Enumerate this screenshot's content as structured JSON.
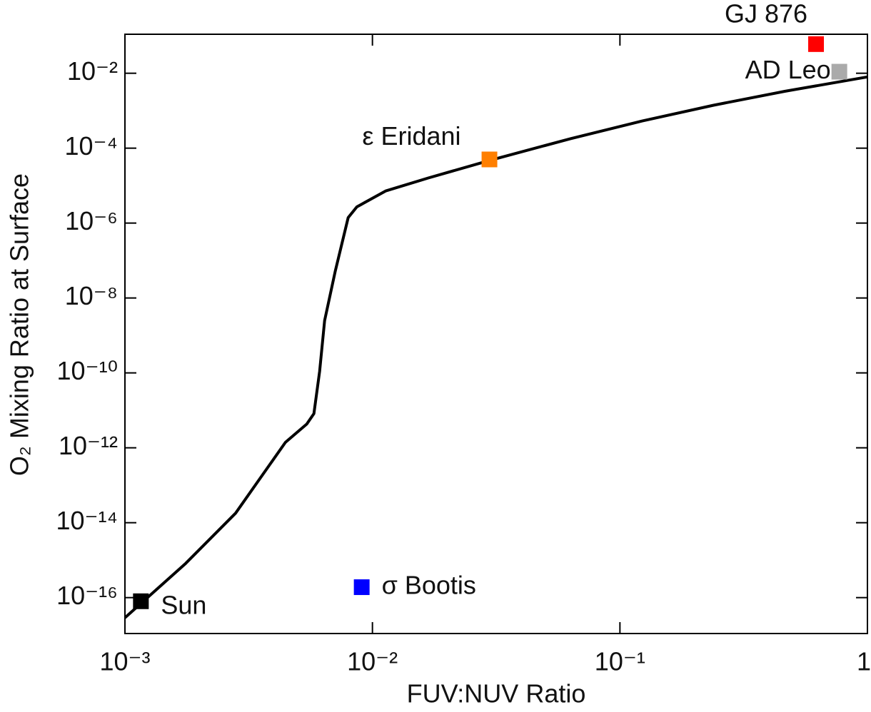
{
  "chart_data": {
    "type": "scatter",
    "x_label": "FUV:NUV Ratio",
    "y_label": "O₂ Mixing Ratio at Surface",
    "xscale": "log",
    "yscale": "log",
    "grid": false,
    "xlim": [
      0.001,
      1
    ],
    "ylim": [
      1.1e-17,
      0.11
    ],
    "xticks": [
      {
        "value": 0.001,
        "label": "10⁻³"
      },
      {
        "value": 0.01,
        "label": "10⁻²"
      },
      {
        "value": 0.1,
        "label": "10⁻¹"
      },
      1
    ],
    "yticks": [
      {
        "value": 1e-16,
        "label": "10⁻¹⁶"
      },
      {
        "value": 1e-14,
        "label": "10⁻¹⁴"
      },
      {
        "value": 1e-12,
        "label": "10⁻¹²"
      },
      {
        "value": 1e-10,
        "label": "10⁻¹⁰"
      },
      {
        "value": 1e-08,
        "label": "10⁻⁸"
      },
      {
        "value": 1e-06,
        "label": "10⁻⁶"
      },
      {
        "value": 0.0001,
        "label": "10⁻⁴"
      },
      {
        "value": 0.01,
        "label": "10⁻²"
      }
    ],
    "curve": {
      "color": "#000000",
      "x": [
        0.001,
        0.00176,
        0.0028,
        0.00445,
        0.00543,
        0.0058,
        0.00612,
        0.00641,
        0.00708,
        0.00798,
        0.00865,
        0.0113,
        0.0168,
        0.0297,
        0.0633,
        0.123,
        0.239,
        0.463,
        1
      ],
      "values": [
        2.9e-17,
        8.2e-16,
        1.8e-14,
        1.4e-12,
        4.3e-12,
        8.2e-12,
        1.1e-10,
        2.5e-09,
        5.3e-08,
        1.4e-06,
        2.7e-06,
        7.2e-06,
        1.6e-05,
        4.7e-05,
        0.00018,
        0.00053,
        0.0014,
        0.0033,
        0.008
      ]
    },
    "series": [
      {
        "name": "Sun",
        "color": "#000000",
        "x": [
          0.00116
        ],
        "values": [
          8e-17
        ]
      },
      {
        "name": "σ Bootis",
        "color": "#0000ff",
        "x": [
          0.00905
        ],
        "values": [
          1.9e-16
        ]
      },
      {
        "name": "ε Eridani",
        "color": "#ff7f00",
        "x": [
          0.0297
        ],
        "values": [
          5e-05
        ]
      },
      {
        "name": "GJ 876",
        "color": "#ff0000",
        "x": [
          0.62
        ],
        "values": [
          0.06
        ]
      },
      {
        "name": "AD Leo",
        "color": "#aaaaaa",
        "x": [
          0.77
        ],
        "values": [
          0.011
        ]
      }
    ]
  }
}
